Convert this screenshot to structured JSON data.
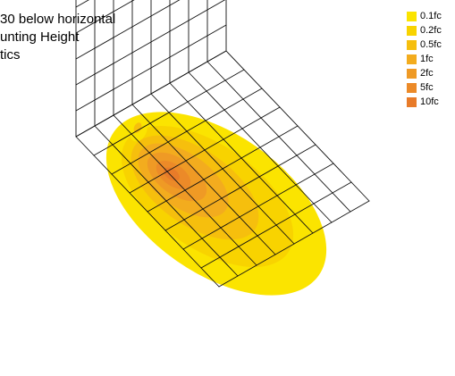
{
  "caption": {
    "lines": [
      "30 below horizontal",
      "unting Height",
      "tics"
    ]
  },
  "legend": [
    {
      "label": "0.1fc",
      "color": "#FBE400"
    },
    {
      "label": "0.2fc",
      "color": "#F8D300"
    },
    {
      "label": "0.5fc",
      "color": "#F6BF0D"
    },
    {
      "label": "1fc",
      "color": "#F3AC1E"
    },
    {
      "label": "2fc",
      "color": "#EF9A25"
    },
    {
      "label": "5fc",
      "color": "#EC8A28"
    },
    {
      "label": "10fc",
      "color": "#E87B29"
    }
  ]
}
